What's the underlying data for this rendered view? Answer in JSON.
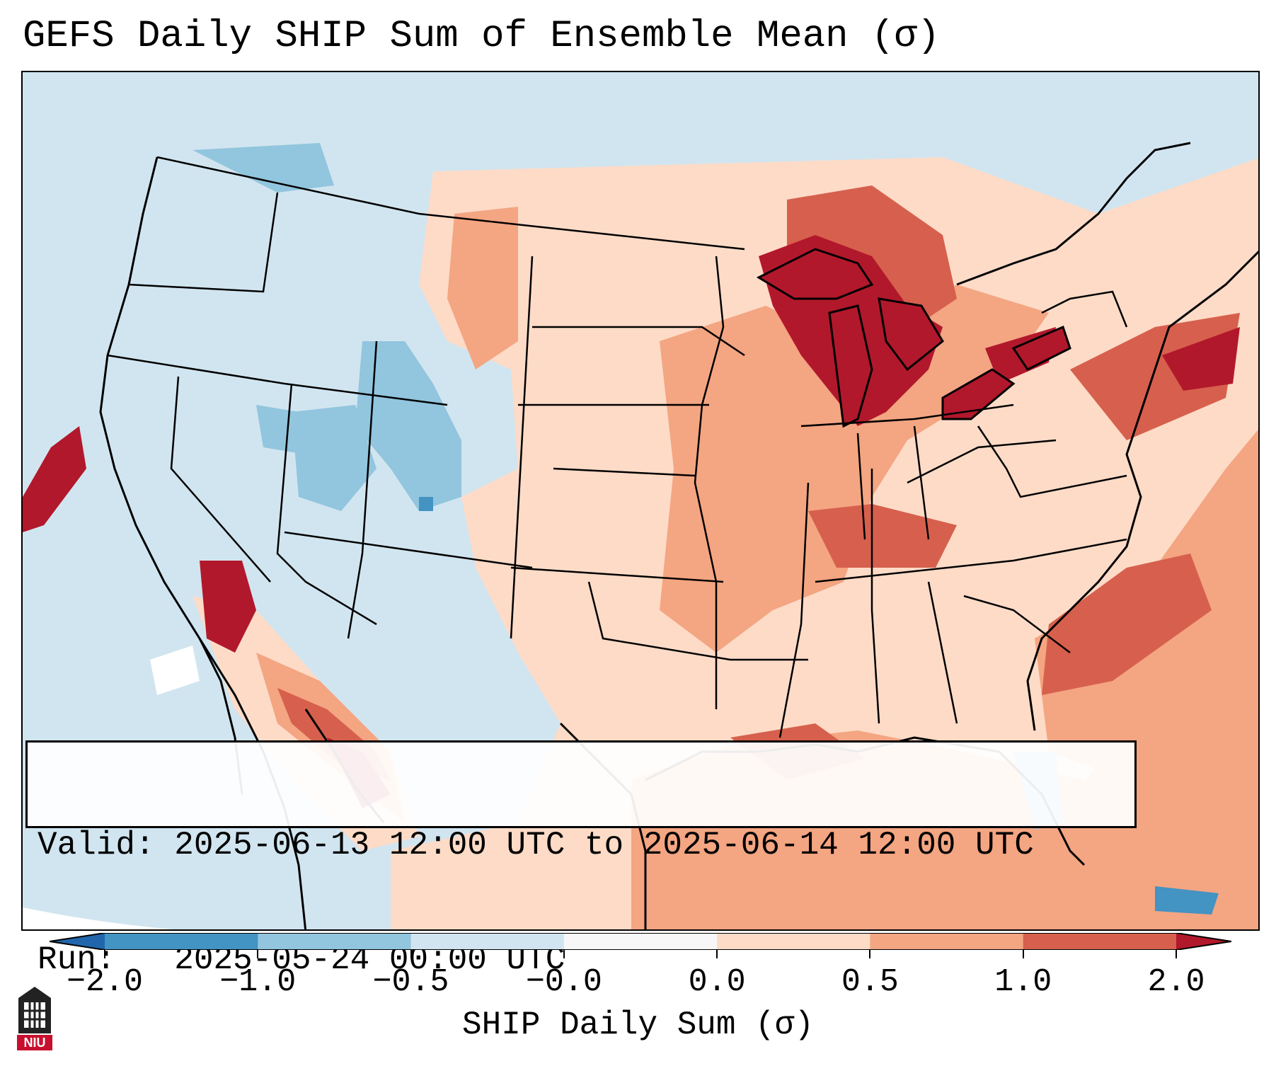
{
  "title": "GEFS Daily SHIP Sum of Ensemble Mean (σ)",
  "info": {
    "valid_line": "Valid: 2025-06-13 12:00 UTC to 2025-06-14 12:00 UTC",
    "run_line": "Run:   2025-05-24 00:00 UTC"
  },
  "colorbar": {
    "label": "SHIP Daily Sum (σ)",
    "ticks": [
      "−2.0",
      "−1.0",
      "−0.5",
      "−0.0",
      "0.0",
      "0.5",
      "1.0",
      "2.0"
    ],
    "colors": [
      "#4393c3",
      "#92c5de",
      "#d1e5f0",
      "#f7f7f7",
      "#fddbc7",
      "#f4a582",
      "#d6604d"
    ],
    "extend_low_color": "#2166ac",
    "extend_high_color": "#b2182b"
  },
  "logo": {
    "text": "NIU",
    "color": "#c8102e"
  },
  "map": {
    "background_color": "#d1e5f0"
  }
}
